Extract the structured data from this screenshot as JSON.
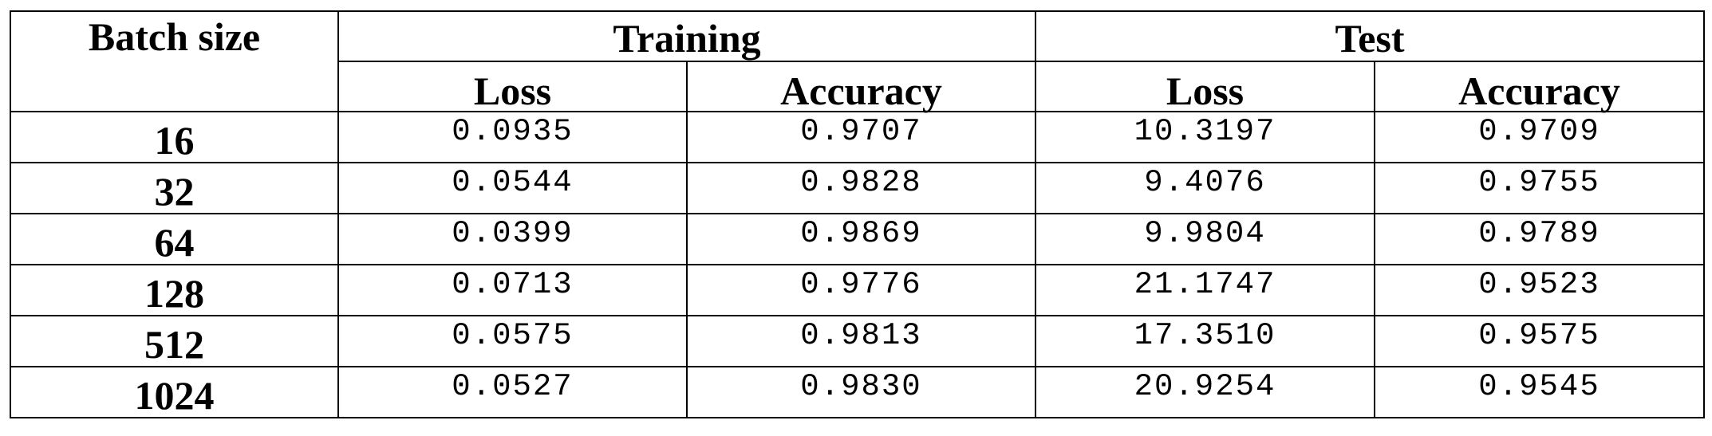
{
  "table": {
    "header": {
      "batch_size": "Batch size",
      "training": "Training",
      "test": "Test",
      "training_loss": "Loss",
      "training_accuracy": "Accuracy",
      "test_loss": "Loss",
      "test_accuracy": "Accuracy"
    },
    "rows": [
      {
        "batch": "16",
        "train_loss": "0.0935",
        "train_acc": "0.9707",
        "test_loss": "10.3197",
        "test_acc": "0.9709"
      },
      {
        "batch": "32",
        "train_loss": "0.0544",
        "train_acc": "0.9828",
        "test_loss": "9.4076",
        "test_acc": "0.9755"
      },
      {
        "batch": "64",
        "train_loss": "0.0399",
        "train_acc": "0.9869",
        "test_loss": "9.9804",
        "test_acc": "0.9789"
      },
      {
        "batch": "128",
        "train_loss": "0.0713",
        "train_acc": "0.9776",
        "test_loss": "21.1747",
        "test_acc": "0.9523"
      },
      {
        "batch": "512",
        "train_loss": "0.0575",
        "train_acc": "0.9813",
        "test_loss": "17.3510",
        "test_acc": "0.9575"
      },
      {
        "batch": "1024",
        "train_loss": "0.0527",
        "train_acc": "0.9830",
        "test_loss": "20.9254",
        "test_acc": "0.9545"
      }
    ]
  }
}
